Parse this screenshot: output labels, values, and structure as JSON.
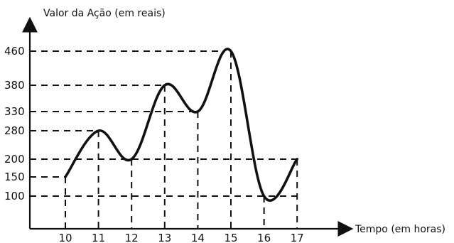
{
  "chart_data": {
    "type": "line",
    "ylabel": "Valor da Ação (em reais)",
    "xlabel": "Tempo (em horas)",
    "x_ticks": [
      10,
      11,
      12,
      13,
      14,
      15,
      16,
      17
    ],
    "y_ticks": [
      100,
      150,
      200,
      280,
      330,
      380,
      460
    ],
    "points": [
      {
        "x": 10,
        "y": 150
      },
      {
        "x": 11,
        "y": 280
      },
      {
        "x": 12,
        "y": 200
      },
      {
        "x": 13,
        "y": 380
      },
      {
        "x": 14,
        "y": 330
      },
      {
        "x": 15,
        "y": 460
      },
      {
        "x": 16,
        "y": 100
      },
      {
        "x": 17,
        "y": 200
      }
    ],
    "xlim": [
      9,
      18
    ],
    "ylim": [
      50,
      500
    ],
    "line_color": "#111111"
  }
}
